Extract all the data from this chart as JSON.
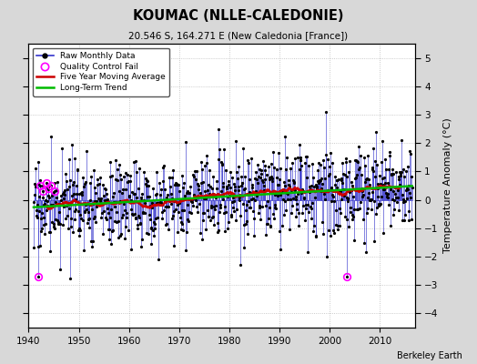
{
  "title": "KOUMAC (NLLE-CALEDONIE)",
  "subtitle": "20.546 S, 164.271 E (New Caledonia [France])",
  "ylabel": "Temperature Anomaly (°C)",
  "credit": "Berkeley Earth",
  "ylim": [
    -4.5,
    5.5
  ],
  "xlim": [
    1940,
    2017
  ],
  "yticks": [
    -4,
    -3,
    -2,
    -1,
    0,
    1,
    2,
    3,
    4,
    5
  ],
  "xticks": [
    1940,
    1950,
    1960,
    1970,
    1980,
    1990,
    2000,
    2010
  ],
  "bg_color": "#d8d8d8",
  "plot_bg_color": "#ffffff",
  "raw_color": "#3333cc",
  "qc_fail_color": "#ff00ff",
  "moving_avg_color": "#cc0000",
  "trend_color": "#00bb00",
  "seed": 17
}
